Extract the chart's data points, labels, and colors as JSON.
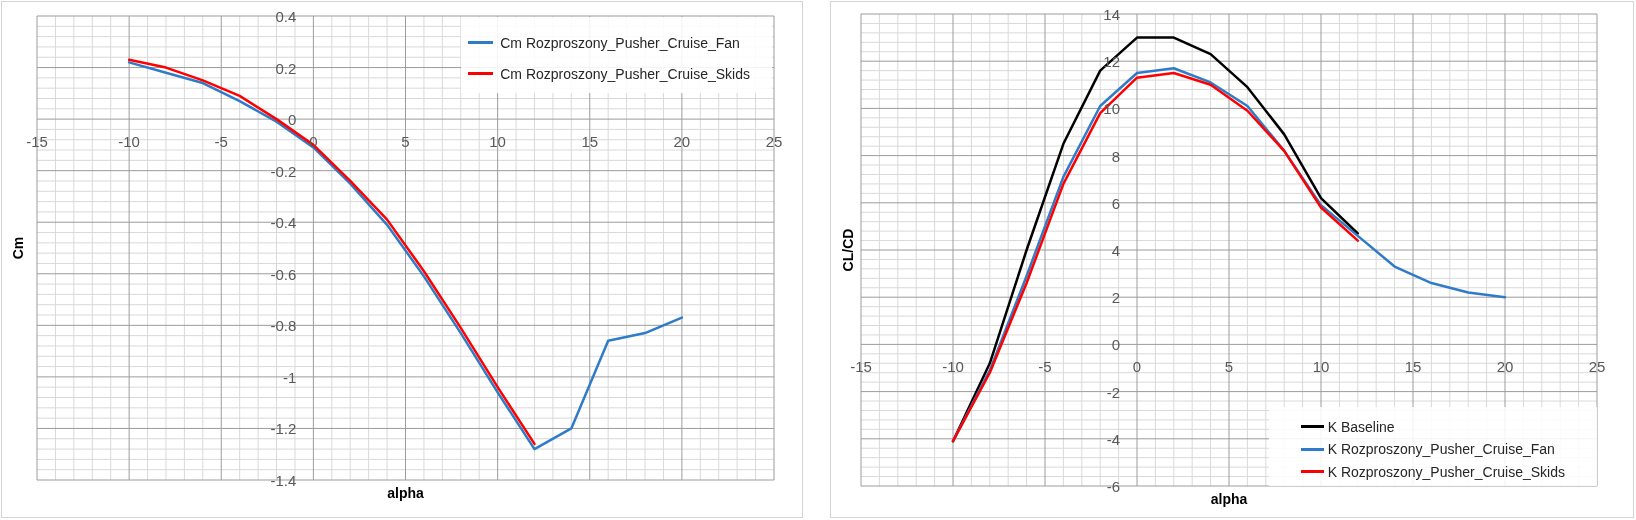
{
  "chart_data": [
    {
      "type": "line",
      "xlabel": "alpha",
      "ylabel": "Cm",
      "xlim": [
        -15,
        25
      ],
      "xticks": [
        -15,
        -10,
        -5,
        0,
        5,
        10,
        15,
        20,
        25
      ],
      "ylim": [
        -1.4,
        0.4
      ],
      "yticks": [
        -1.4,
        -1.2,
        -1,
        -0.8,
        -0.6,
        -0.4,
        -0.2,
        0,
        0.2,
        0.4
      ],
      "grid": true,
      "legend": "top right",
      "series": [
        {
          "name": "Cm Rozproszony_Pusher_Cruise_Fan",
          "color": "#2f7bc8",
          "x": [
            -10,
            -8,
            -6,
            -4,
            -2,
            0,
            2,
            4,
            6,
            8,
            10,
            12,
            14,
            16,
            18,
            20
          ],
          "values": [
            0.22,
            0.18,
            0.14,
            0.07,
            -0.01,
            -0.11,
            -0.25,
            -0.41,
            -0.61,
            -0.83,
            -1.06,
            -1.28,
            -1.2,
            -0.86,
            -0.83,
            -0.77
          ]
        },
        {
          "name": "Cm Rozproszony_Pusher_Cruise_Skids",
          "color": "#ff0000",
          "x": [
            -10,
            -8,
            -6,
            -4,
            -2,
            0,
            2,
            4,
            6,
            8,
            10,
            12
          ],
          "values": [
            0.23,
            0.2,
            0.15,
            0.09,
            0,
            -0.1,
            -0.24,
            -0.39,
            -0.59,
            -0.81,
            -1.04,
            -1.26
          ]
        }
      ]
    },
    {
      "type": "line",
      "xlabel": "alpha",
      "ylabel": "CL/CD",
      "xlim": [
        -15,
        25
      ],
      "xticks": [
        -15,
        -10,
        -5,
        0,
        5,
        10,
        15,
        20,
        25
      ],
      "ylim": [
        -6,
        14
      ],
      "yticks": [
        -6,
        -4,
        -2,
        0,
        2,
        4,
        6,
        8,
        10,
        12,
        14
      ],
      "grid": true,
      "legend": "bottom right",
      "series": [
        {
          "name": "K Baseline",
          "color": "#000000",
          "x": [
            -10,
            -8,
            -6,
            -4,
            -2,
            0,
            2,
            4,
            6,
            8,
            10,
            12
          ],
          "values": [
            -4.1,
            -0.8,
            4,
            8.5,
            11.6,
            13,
            13,
            12.3,
            10.9,
            8.9,
            6.2,
            4.7
          ]
        },
        {
          "name": "K Rozproszony_Pusher_Cruise_Fan",
          "color": "#2f7bc8",
          "x": [
            -10,
            -8,
            -6,
            -4,
            -2,
            0,
            2,
            4,
            6,
            8,
            10,
            12,
            14,
            16,
            18,
            20
          ],
          "values": [
            -4.1,
            -1.1,
            2.9,
            7.1,
            10.1,
            11.5,
            11.7,
            11.1,
            10.1,
            8.2,
            5.9,
            4.6,
            3.3,
            2.6,
            2.2,
            2
          ]
        },
        {
          "name": "K Rozproszony_Pusher_Cruise_Skids",
          "color": "#ff0000",
          "x": [
            -10,
            -8,
            -6,
            -4,
            -2,
            0,
            2,
            4,
            6,
            8,
            10,
            12
          ],
          "values": [
            -4.1,
            -1.2,
            2.6,
            6.8,
            9.8,
            11.3,
            11.5,
            11,
            9.9,
            8.2,
            5.8,
            4.4
          ]
        }
      ]
    }
  ]
}
